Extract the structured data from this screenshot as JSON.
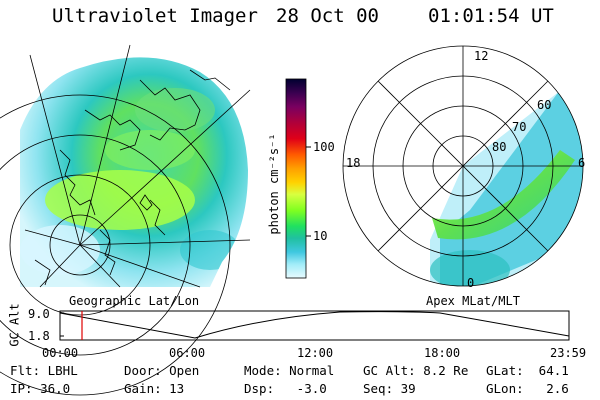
{
  "header": {
    "instrument": "Ultraviolet Imager",
    "date": "28 Oct 00",
    "time": "01:01:54 UT"
  },
  "colorbar": {
    "unit_label": "photon cm⁻²s⁻¹",
    "ticks": [
      "100",
      "10"
    ],
    "colors": [
      "#000030",
      "#3a0050",
      "#7a0060",
      "#b0003a",
      "#e00018",
      "#ff5a00",
      "#ffa000",
      "#ffd200",
      "#d8ff40",
      "#80ff20",
      "#20e060",
      "#20c0a0",
      "#40c8e0",
      "#a0ecf8",
      "#e8fbff"
    ]
  },
  "left_map": {
    "label": "Geographic Lat/Lon"
  },
  "right_map": {
    "label": "Apex MLat/MLT",
    "mlt_labels": [
      "12",
      "18",
      "6",
      "0"
    ],
    "lat_labels": [
      "60",
      "70",
      "80"
    ]
  },
  "timeline": {
    "axis_label": "GC Alt",
    "y_ticks": [
      "9.0",
      "1.8"
    ],
    "x_ticks": [
      "00:00",
      "06:00",
      "12:00",
      "18:00",
      "23:59"
    ],
    "marker_color": "#e00000"
  },
  "info": {
    "flt": "Flt: LBHL",
    "ip": "IP: 36.0",
    "door": "Door: Open",
    "gain": "Gain: 13",
    "mode": "Mode: Normal",
    "dsp": "Dsp:   -3.0",
    "gcalt": "GC Alt: 8.2 Re",
    "seq": "Seq: 39",
    "glat": "GLat:  64.1",
    "glon": "GLon:   2.6"
  }
}
